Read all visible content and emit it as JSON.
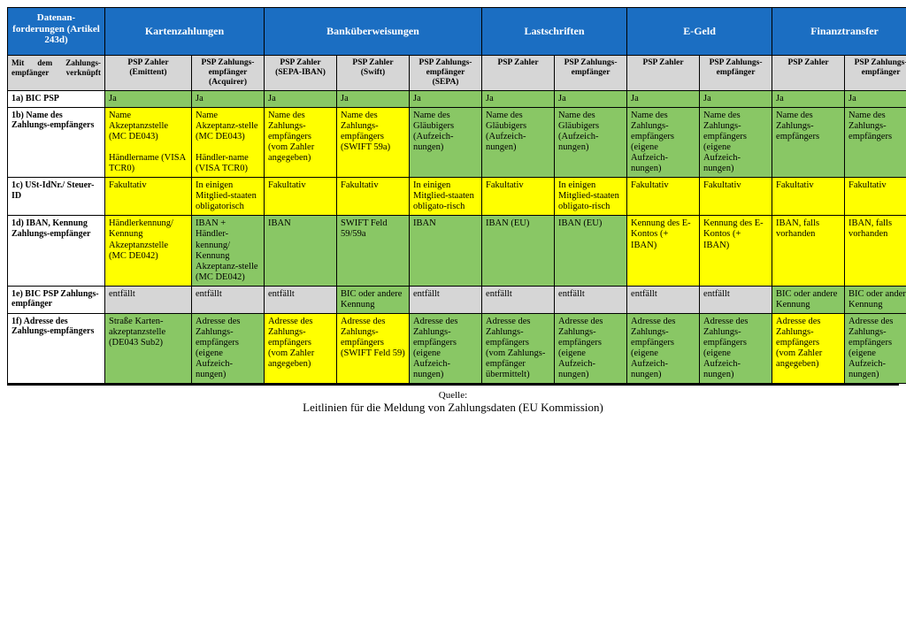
{
  "colors": {
    "header_bg": "#1b6ec2",
    "header_fg": "#ffffff",
    "subheader_bg": "#d6d6d6",
    "green": "#89c765",
    "yellow": "#ffff00",
    "grey": "#d6d6d6",
    "border": "#000000",
    "page_bg": "#ffffff"
  },
  "fonts": {
    "family": "Times New Roman",
    "body_pt": 10.5,
    "header_pt": 12
  },
  "header_row": {
    "left": "Datenan-\nforderungen (Artikel 243d)",
    "groups": [
      {
        "label": "Kartenzahlungen",
        "span": 2
      },
      {
        "label": "Banküberweisungen",
        "span": 3
      },
      {
        "label": "Lastschriften",
        "span": 2
      },
      {
        "label": "E-Geld",
        "span": 2
      },
      {
        "label": "Finanztransfer",
        "span": 2
      }
    ]
  },
  "subheader_row": {
    "left": "Mit dem Zahlungs-empfänger verknüpft",
    "cells": [
      "PSP Zahler (Emittent)",
      "PSP Zahlungs-empfänger (Acquirer)",
      "PSP Zahler (SEPA-IBAN)",
      "PSP Zahler (Swift)",
      "PSP Zahlungs-empfänger (SEPA)",
      "PSP Zahler",
      "PSP Zahlungs-empfänger",
      "PSP Zahler",
      "PSP Zahlungs-empfänger",
      "PSP Zahler",
      "PSP Zahlungs-empfänger"
    ]
  },
  "rows": [
    {
      "label": "1a) BIC PSP",
      "cells": [
        {
          "t": "Ja",
          "c": "g"
        },
        {
          "t": "Ja",
          "c": "g"
        },
        {
          "t": "Ja",
          "c": "g"
        },
        {
          "t": "Ja",
          "c": "g"
        },
        {
          "t": "Ja",
          "c": "g"
        },
        {
          "t": "Ja",
          "c": "g"
        },
        {
          "t": "Ja",
          "c": "g"
        },
        {
          "t": "Ja",
          "c": "g"
        },
        {
          "t": "Ja",
          "c": "g"
        },
        {
          "t": "Ja",
          "c": "g"
        },
        {
          "t": "Ja",
          "c": "g"
        }
      ]
    },
    {
      "label": "1b) Name des Zahlungs-empfängers",
      "cells": [
        {
          "t": "Name Akzeptanzstelle (MC DE043)\n\nHändlername (VISA TCR0)",
          "c": "y"
        },
        {
          "t": "Name Akzeptanz-stelle (MC DE043)\n\nHändler-name (VISA TCR0)",
          "c": "y"
        },
        {
          "t": "Name des Zahlungs-empfängers (vom Zahler angegeben)",
          "c": "y"
        },
        {
          "t": "Name des Zahlungs-empfängers (SWIFT 59a)",
          "c": "y"
        },
        {
          "t": "Name des Gläubigers (Aufzeich-nungen)",
          "c": "g"
        },
        {
          "t": "Name des Gläubigers (Aufzeich-nungen)",
          "c": "g"
        },
        {
          "t": "Name des Gläubigers (Aufzeich-nungen)",
          "c": "g"
        },
        {
          "t": "Name des Zahlungs-empfängers (eigene Aufzeich-nungen)",
          "c": "g"
        },
        {
          "t": "Name des Zahlungs-empfängers (eigene Aufzeich-nungen)",
          "c": "g"
        },
        {
          "t": "Name des Zahlungs-empfängers",
          "c": "g"
        },
        {
          "t": "Name des Zahlungs-empfängers",
          "c": "g"
        }
      ]
    },
    {
      "label": "1c) USt-IdNr./ Steuer-ID",
      "cells": [
        {
          "t": "Fakultativ",
          "c": "y"
        },
        {
          "t": "In einigen Mitglied-staaten obligatorisch",
          "c": "y"
        },
        {
          "t": "Fakultativ",
          "c": "y"
        },
        {
          "t": "Fakultativ",
          "c": "y"
        },
        {
          "t": "In einigen Mitglied-staaten obligato-risch",
          "c": "y"
        },
        {
          "t": "Fakultativ",
          "c": "y"
        },
        {
          "t": "In einigen Mitglied-staaten obligato-risch",
          "c": "y"
        },
        {
          "t": "Fakultativ",
          "c": "y"
        },
        {
          "t": "Fakultativ",
          "c": "y"
        },
        {
          "t": "Fakultativ",
          "c": "y"
        },
        {
          "t": "Fakultativ",
          "c": "y"
        }
      ]
    },
    {
      "label": "1d) IBAN, Kennung Zahlungs-empfänger",
      "cells": [
        {
          "t": "Händlerkennung/ Kennung Akzeptanzstelle (MC DE042)",
          "c": "y"
        },
        {
          "t": "IBAN + Händler-kennung/ Kennung Akzeptanz-stelle (MC DE042)",
          "c": "g"
        },
        {
          "t": "IBAN",
          "c": "g"
        },
        {
          "t": "SWIFT Feld 59/59a",
          "c": "g"
        },
        {
          "t": "IBAN",
          "c": "g"
        },
        {
          "t": "IBAN (EU)",
          "c": "g"
        },
        {
          "t": "IBAN (EU)",
          "c": "g"
        },
        {
          "t": "Kennung des E-Kontos (+ IBAN)",
          "c": "y"
        },
        {
          "t": "Kennung des E-Kontos (+ IBAN)",
          "c": "y"
        },
        {
          "t": "IBAN, falls vorhanden",
          "c": "y"
        },
        {
          "t": "IBAN, falls vorhanden",
          "c": "y"
        }
      ]
    },
    {
      "label": "1e) BIC PSP Zahlungs-empfänger",
      "cells": [
        {
          "t": "entfällt",
          "c": "gr"
        },
        {
          "t": "entfällt",
          "c": "gr"
        },
        {
          "t": "entfällt",
          "c": "gr"
        },
        {
          "t": "BIC oder andere Kennung",
          "c": "g"
        },
        {
          "t": "entfällt",
          "c": "gr"
        },
        {
          "t": "entfällt",
          "c": "gr"
        },
        {
          "t": "entfällt",
          "c": "gr"
        },
        {
          "t": "entfällt",
          "c": "gr"
        },
        {
          "t": "entfällt",
          "c": "gr"
        },
        {
          "t": "BIC oder andere Kennung",
          "c": "g"
        },
        {
          "t": "BIC oder andere Kennung",
          "c": "g"
        }
      ]
    },
    {
      "label": "1f) Adresse des Zahlungs-empfängers",
      "cells": [
        {
          "t": "Straße Karten-akzeptanzstelle (DE043 Sub2)",
          "c": "g"
        },
        {
          "t": "Adresse des Zahlungs-empfängers (eigene Aufzeich-nungen)",
          "c": "g"
        },
        {
          "t": "Adresse des Zahlungs-empfängers (vom Zahler angegeben)",
          "c": "y"
        },
        {
          "t": "Adresse des Zahlungs-empfängers (SWIFT Feld 59)",
          "c": "y"
        },
        {
          "t": "Adresse des Zahlungs-empfängers (eigene Aufzeich-nungen)",
          "c": "g"
        },
        {
          "t": "Adresse des Zahlungs-empfängers (vom Zahlungs-empfänger übermittelt)",
          "c": "g"
        },
        {
          "t": "Adresse des Zahlungs-empfängers (eigene Aufzeich-nungen)",
          "c": "g"
        },
        {
          "t": "Adresse des Zahlungs-empfängers (eigene Aufzeich-nungen)",
          "c": "g"
        },
        {
          "t": "Adresse des Zahlungs-empfängers (eigene Aufzeich-nungen)",
          "c": "g"
        },
        {
          "t": "Adresse des Zahlungs-empfängers (vom Zahler angegeben)",
          "c": "y"
        },
        {
          "t": "Adresse des Zahlungs-empfängers (eigene Aufzeich-nungen)",
          "c": "g"
        }
      ]
    }
  ],
  "caption": {
    "source_label": "Quelle:",
    "source_text": "Leitlinien für die Meldung von Zahlungsdaten (EU Kommission)"
  }
}
